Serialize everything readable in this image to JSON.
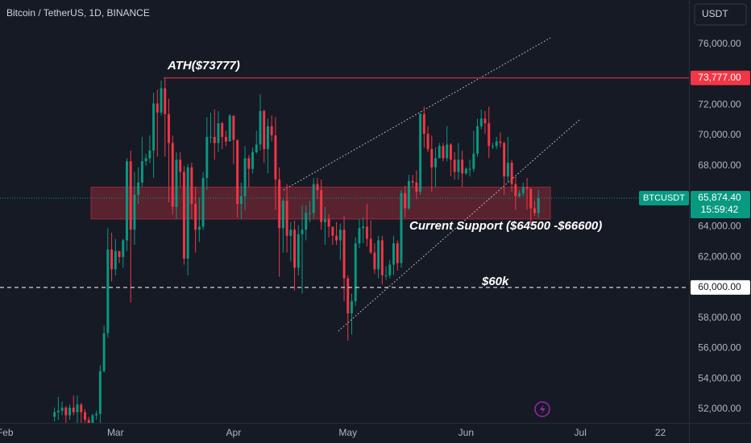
{
  "chart_data": {
    "type": "candlestick",
    "title": "Bitcoin / TetherUS, 1D, BINANCE",
    "currency": "USDT",
    "up_color": "#089981",
    "down_color": "#f23645",
    "grid": false,
    "x": [
      13,
      14,
      15,
      16,
      17,
      18,
      19,
      20,
      21,
      22,
      23,
      24,
      25,
      26,
      27,
      28,
      29,
      30,
      31,
      32,
      33,
      34,
      35,
      36,
      37,
      38,
      39,
      40,
      41,
      42,
      43,
      44,
      45,
      46,
      47,
      48,
      49,
      50,
      51,
      52,
      53,
      54,
      55,
      56,
      57,
      58,
      59,
      60,
      61,
      62,
      63,
      64,
      65,
      66,
      67,
      68,
      69,
      70,
      71,
      72,
      73,
      74,
      75,
      76,
      77,
      78,
      79,
      80,
      81,
      82,
      83,
      84,
      85,
      86,
      87,
      88,
      89,
      90,
      91,
      92,
      93,
      94,
      95,
      96,
      97,
      98,
      99,
      100,
      101,
      102,
      103,
      104,
      105,
      106,
      107,
      108,
      109,
      110,
      111,
      112,
      113,
      114,
      115,
      116,
      117,
      118,
      119,
      120,
      121,
      122,
      123,
      124,
      125,
      126,
      127,
      128,
      129,
      130,
      131,
      132,
      133,
      134,
      135,
      136,
      137,
      138,
      139,
      140
    ],
    "open": [
      51500,
      51800,
      51900,
      52100,
      51600,
      52100,
      51800,
      52300,
      51800,
      51300,
      50700,
      51600,
      51700,
      54500,
      57000,
      62500,
      61200,
      62400,
      62000,
      63100,
      68300,
      63800,
      66100,
      66900,
      68300,
      68500,
      69000,
      72100,
      71500,
      73100,
      71400,
      69500,
      65300,
      68400,
      67600,
      61900,
      67900,
      65500,
      63800,
      64000,
      67200,
      69900,
      69900,
      69500,
      70800,
      69900,
      69600,
      71300,
      69700,
      65500,
      66000,
      68500,
      67800,
      68900,
      69400,
      71600,
      69100,
      70600,
      70000,
      67100,
      63900,
      65700,
      63400,
      63800,
      61300,
      63500,
      63800,
      64900,
      64900,
      66800,
      66400,
      64300,
      64500,
      64000,
      63400,
      63100,
      63800,
      60600,
      58300,
      59100,
      62900,
      63900,
      64000,
      63200,
      62300,
      61200,
      63100,
      60800,
      60800,
      61500,
      62900,
      61600,
      66200,
      65200,
      67000,
      66900,
      66300,
      71400,
      70100,
      69100,
      67900,
      68500,
      69300,
      68500,
      69400,
      68400,
      67600,
      68400,
      67500,
      67800,
      67800,
      68800,
      70600,
      71100,
      70800,
      69300,
      69300,
      69600,
      69500,
      67300,
      68200,
      66800,
      66000,
      66200,
      66600,
      66500,
      65200,
      64900
    ],
    "high": [
      52100,
      52800,
      52500,
      52200,
      52300,
      52900,
      52900,
      52400,
      52000,
      51500,
      51700,
      51900,
      54900,
      57500,
      63900,
      63600,
      63200,
      62400,
      63200,
      68500,
      69000,
      67600,
      67900,
      69900,
      68800,
      70000,
      72800,
      73000,
      73600,
      73777,
      72400,
      70000,
      68900,
      68900,
      68000,
      68100,
      68200,
      66600,
      65900,
      67600,
      71200,
      71500,
      71700,
      71600,
      70900,
      70300,
      71400,
      71300,
      69700,
      66900,
      69300,
      68700,
      69200,
      70300,
      72700,
      71700,
      71100,
      71300,
      71200,
      67900,
      65900,
      66800,
      64300,
      64400,
      64100,
      65400,
      65400,
      65700,
      67200,
      67200,
      67100,
      65300,
      64800,
      64000,
      64300,
      64200,
      64700,
      60800,
      59600,
      63300,
      64500,
      64600,
      65500,
      64400,
      62900,
      63400,
      63400,
      61400,
      61800,
      63400,
      63100,
      66400,
      66700,
      67400,
      67400,
      67700,
      71500,
      71900,
      70600,
      70000,
      69200,
      69500,
      69500,
      70600,
      69500,
      68900,
      69500,
      69000,
      67900,
      68400,
      70300,
      71100,
      71700,
      71600,
      71900,
      69500,
      69900,
      70200,
      69600,
      69900,
      68400,
      67300,
      66400,
      66900,
      67200,
      66500,
      65700,
      66400
    ],
    "low": [
      51200,
      51300,
      51600,
      50700,
      51300,
      51600,
      50600,
      50900,
      50900,
      50500,
      50600,
      51300,
      50900,
      54400,
      56700,
      60400,
      60800,
      61600,
      61300,
      62400,
      59000,
      62800,
      65500,
      66600,
      68000,
      68200,
      67200,
      68600,
      71300,
      68600,
      65600,
      64800,
      64500,
      66600,
      61500,
      60800,
      64500,
      62300,
      63000,
      63800,
      66400,
      69500,
      68400,
      68900,
      69100,
      69300,
      69600,
      68100,
      64600,
      64500,
      65100,
      66600,
      67500,
      68800,
      69000,
      68200,
      67500,
      69600,
      65100,
      60700,
      62300,
      62300,
      61700,
      59800,
      60800,
      59600,
      63100,
      64300,
      64500,
      65800,
      63800,
      62800,
      63300,
      62800,
      62800,
      61800,
      59100,
      56500,
      56900,
      58800,
      62600,
      62900,
      62700,
      62200,
      60900,
      60600,
      60200,
      60500,
      60600,
      60800,
      61100,
      61300,
      64600,
      65100,
      66600,
      65800,
      66100,
      69200,
      68900,
      66300,
      66600,
      68500,
      68300,
      68300,
      67300,
      67100,
      67100,
      66600,
      67400,
      67300,
      67600,
      68600,
      70400,
      70100,
      68500,
      69100,
      69100,
      69200,
      66100,
      66900,
      66300,
      65100,
      65900,
      66000,
      65100,
      64100,
      64700,
      64600
    ],
    "close": [
      51800,
      51900,
      52100,
      51600,
      52100,
      51800,
      52300,
      51800,
      51300,
      50700,
      51600,
      51700,
      54500,
      57000,
      62500,
      61200,
      62400,
      62000,
      63100,
      68300,
      63800,
      66100,
      66900,
      68300,
      68500,
      69000,
      72100,
      71500,
      73100,
      71400,
      69500,
      65300,
      68400,
      67600,
      61900,
      67900,
      65500,
      63800,
      64000,
      67200,
      69900,
      69900,
      69500,
      70800,
      69900,
      69600,
      71300,
      69700,
      65500,
      66000,
      68500,
      67800,
      68900,
      69400,
      71600,
      69100,
      70600,
      70000,
      67100,
      63900,
      65700,
      63400,
      63800,
      61300,
      63500,
      63800,
      64900,
      64900,
      66800,
      66400,
      64300,
      64500,
      64000,
      63400,
      63100,
      63800,
      60600,
      58300,
      59100,
      62900,
      63900,
      64000,
      63200,
      62300,
      61200,
      63100,
      60800,
      60800,
      61500,
      62900,
      61600,
      66200,
      65200,
      67000,
      66900,
      66300,
      71400,
      70100,
      69100,
      67900,
      68500,
      69300,
      68500,
      69400,
      68400,
      67600,
      68400,
      67500,
      67800,
      67800,
      68800,
      70600,
      71100,
      70800,
      69300,
      69300,
      69600,
      69500,
      67300,
      68200,
      66800,
      66000,
      66200,
      66600,
      66500,
      65200,
      64900,
      65874.4
    ],
    "xlim": [
      -1.3,
      179.5
    ],
    "xticks": [
      {
        "value": 0,
        "label": "Feb"
      },
      {
        "value": 29,
        "label": "Mar"
      },
      {
        "value": 60,
        "label": "Apr"
      },
      {
        "value": 90,
        "label": "May"
      },
      {
        "value": 121,
        "label": "Jun"
      },
      {
        "value": 151,
        "label": "Jul"
      },
      {
        "value": 172,
        "label": "22"
      }
    ],
    "ylim": [
      51100,
      78900
    ],
    "yticks": [
      {
        "value": 76000,
        "label": "76,000.00"
      },
      {
        "value": 72000,
        "label": "72,000.00"
      },
      {
        "value": 70000,
        "label": "70,000.00"
      },
      {
        "value": 68000,
        "label": "68,000.00"
      },
      {
        "value": 64000,
        "label": "64,000.00"
      },
      {
        "value": 62000,
        "label": "62,000.00"
      },
      {
        "value": 58000,
        "label": "58,000.00"
      },
      {
        "value": 56000,
        "label": "56,000.00"
      },
      {
        "value": 54000,
        "label": "54,000.00"
      },
      {
        "value": 52000,
        "label": "52,000.00"
      }
    ],
    "horizontal_lines": [
      {
        "value": 73777,
        "label": "73,777.00",
        "color": "#f23645",
        "style": "solid"
      },
      {
        "value": 60000,
        "label": "60,000.00",
        "color": "#ffffff",
        "style": "dashed"
      }
    ],
    "support_zone": {
      "from": 64500,
      "to": 66600,
      "color": "#f23645"
    },
    "last_price": {
      "symbol": "BTCUSDT",
      "label": "65,874.40",
      "countdown": "15:59:42"
    },
    "annotations": [
      "ATH($73777)",
      "Current Support ($64500 -$66600)",
      "$60k"
    ]
  }
}
